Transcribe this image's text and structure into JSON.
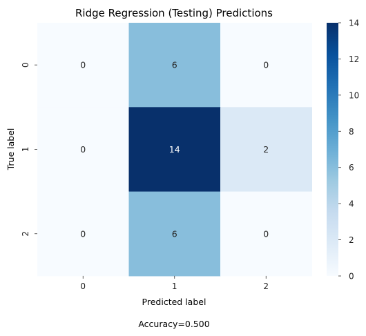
{
  "chart_data": {
    "type": "heatmap",
    "title": "Ridge Regression (Testing) Predictions",
    "xlabel": "Predicted label",
    "ylabel": "True label",
    "x_categories": [
      "0",
      "1",
      "2"
    ],
    "y_categories": [
      "0",
      "1",
      "2"
    ],
    "values": [
      [
        0,
        6,
        0
      ],
      [
        0,
        14,
        2
      ],
      [
        0,
        6,
        0
      ]
    ],
    "colorbar": {
      "min": 0,
      "max": 14,
      "ticks": [
        0,
        2,
        4,
        6,
        8,
        10,
        12,
        14
      ],
      "colormap": "Blues"
    },
    "footer": "Accuracy=0.500"
  }
}
